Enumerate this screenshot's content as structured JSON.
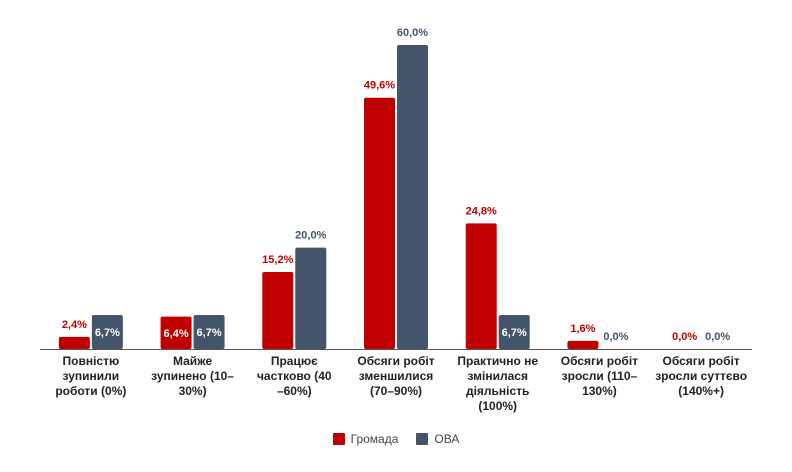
{
  "chart_data": {
    "type": "bar",
    "categories": [
      [
        "Повністю",
        "зупинили",
        "роботи (0%)"
      ],
      [
        "Майже",
        "зупинено (10–",
        "30%)"
      ],
      [
        "Працює",
        "частково (40",
        "–60%)"
      ],
      [
        "Обсяги робіт",
        "зменшилися",
        "(70–90%)"
      ],
      [
        "Практично не",
        "змінилася",
        "діяльність",
        "(100%)"
      ],
      [
        "Обсяги робіт",
        "зросли (110–",
        "130%)"
      ],
      [
        "Обсяги робіт",
        "зросли суттєво",
        "(140%+)"
      ]
    ],
    "series": [
      {
        "name": "Громада",
        "color": "#c00000",
        "values": [
          2.4,
          6.4,
          15.2,
          49.6,
          24.8,
          1.6,
          0.0
        ],
        "labels": [
          "2,4%",
          "6,4%",
          "15,2%",
          "49,6%",
          "24,8%",
          "1,6%",
          "0,0%"
        ]
      },
      {
        "name": "ОВА",
        "color": "#44546a",
        "values": [
          6.7,
          6.7,
          20.0,
          60.0,
          6.7,
          0.0,
          0.0
        ],
        "labels": [
          "6,7%",
          "6,7%",
          "20,0%",
          "60,0%",
          "6,7%",
          "0,0%",
          "0,0%"
        ]
      }
    ],
    "ylim": [
      0,
      60
    ],
    "grid": false,
    "legend_position": "bottom"
  }
}
